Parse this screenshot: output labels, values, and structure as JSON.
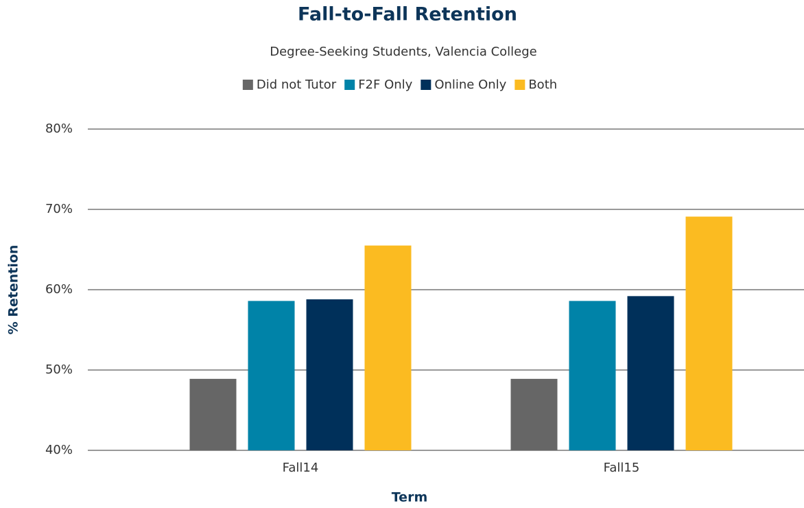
{
  "chart_data": {
    "type": "bar",
    "title": "Fall-to-Fall Retention",
    "subtitle": "Degree-Seeking Students, Valencia College",
    "x_label": "Term",
    "y_label": "% Retention",
    "categories": [
      "Fall14",
      "Fall15"
    ],
    "series": [
      {
        "name": "Did not Tutor",
        "color": "#666666",
        "values": [
          48.9,
          48.9
        ]
      },
      {
        "name": "F2F Only",
        "color": "#0083a8",
        "values": [
          58.6,
          58.6
        ]
      },
      {
        "name": "Online Only",
        "color": "#00305a",
        "values": [
          58.8,
          59.2
        ]
      },
      {
        "name": "Both",
        "color": "#fbbb21",
        "values": [
          65.5,
          69.1
        ]
      }
    ],
    "ylim": [
      40,
      80
    ],
    "yticks": [
      {
        "value": 40,
        "label": "40%"
      },
      {
        "value": 50,
        "label": "50%"
      },
      {
        "value": 60,
        "label": "60%"
      },
      {
        "value": 70,
        "label": "70%"
      },
      {
        "value": 80,
        "label": "80%"
      }
    ],
    "grid": true,
    "legend": "top"
  }
}
